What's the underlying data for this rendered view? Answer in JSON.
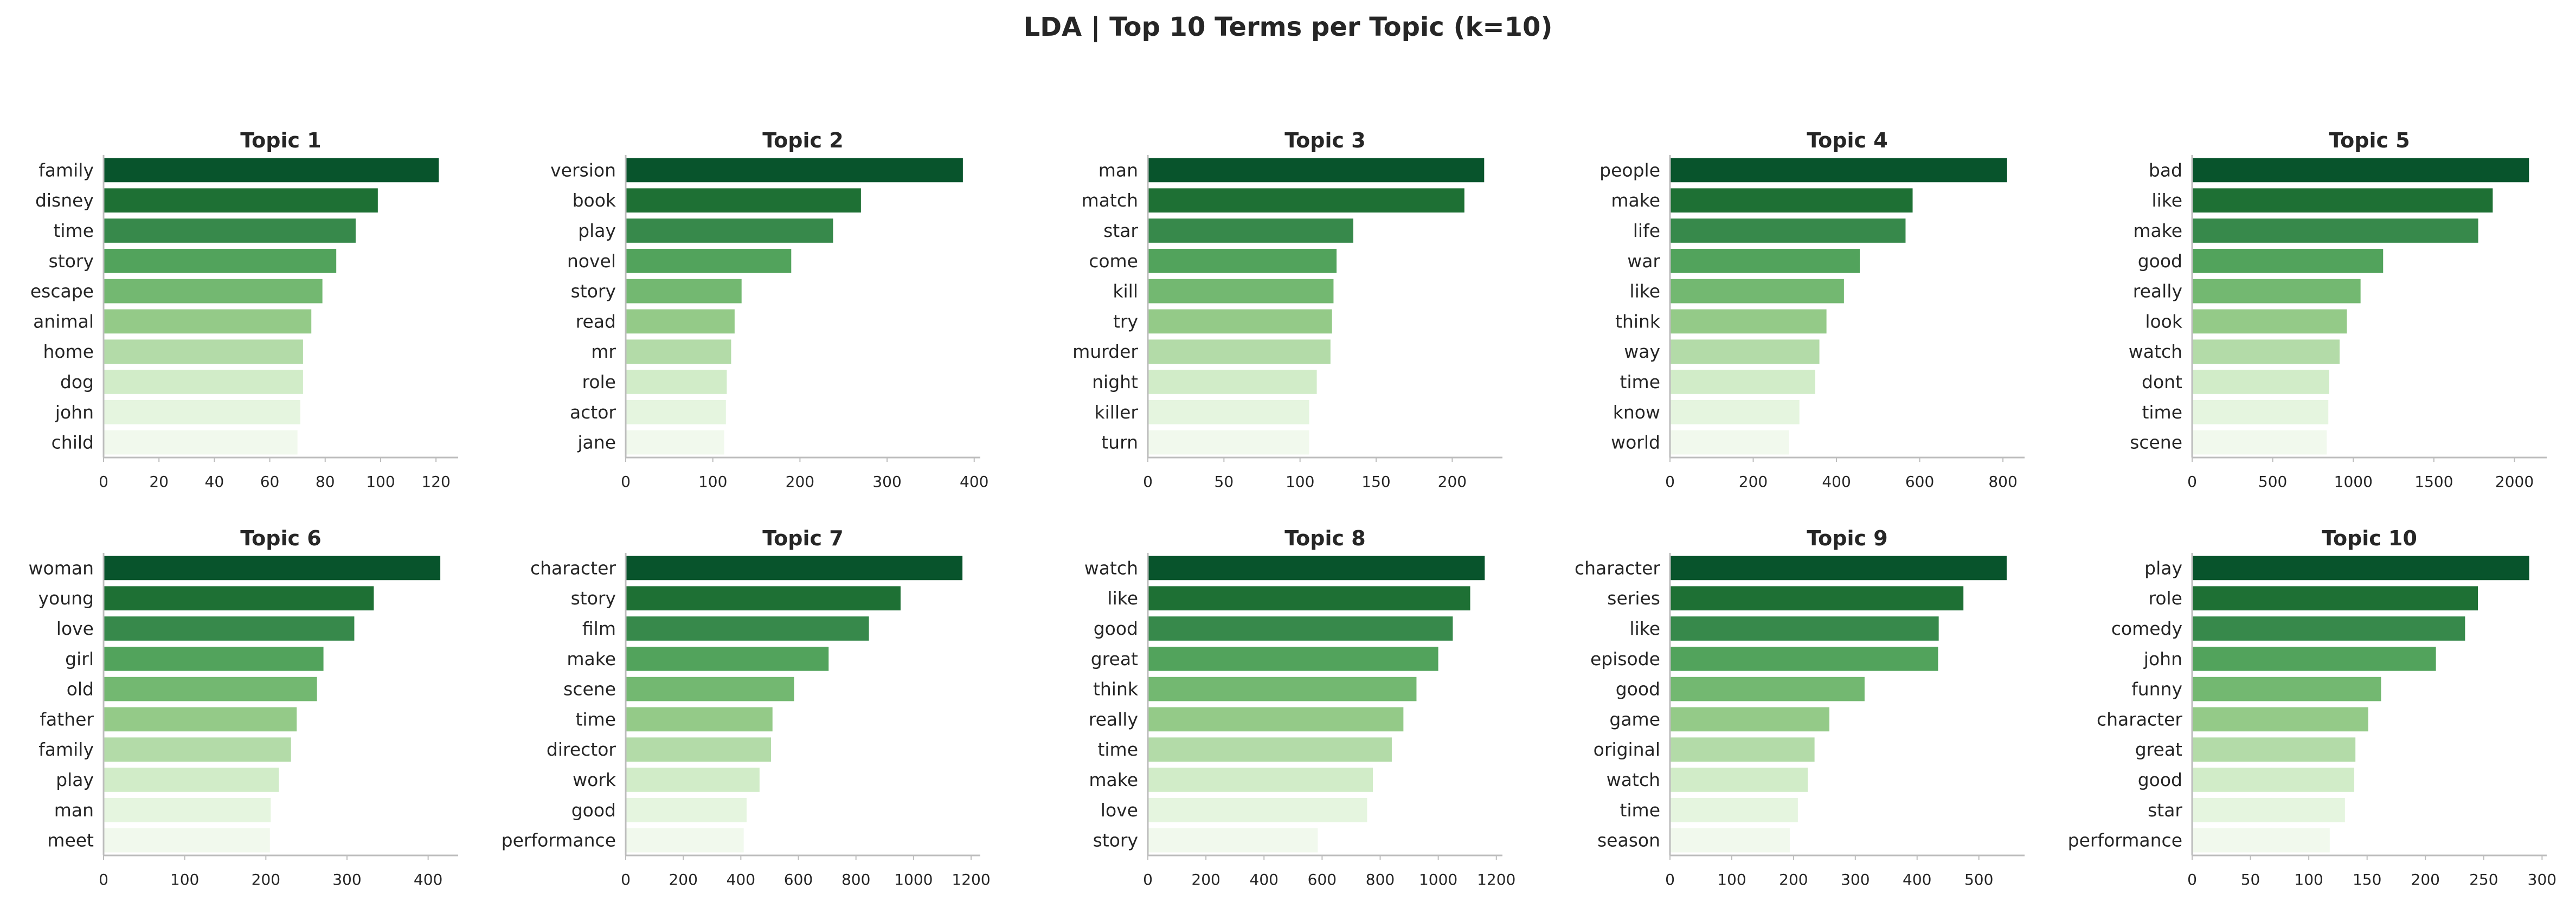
{
  "suptitle": "LDA | Top 10 Terms per Topic (k=10)",
  "colors": [
    "#08542c",
    "#1e7034",
    "#37894b",
    "#52a35c",
    "#73b871",
    "#94ca88",
    "#b3dba8",
    "#d1ecc8",
    "#e5f5df",
    "#f1f9ed"
  ],
  "chart_data": [
    {
      "type": "bar",
      "orientation": "horizontal",
      "title": "Topic 1",
      "categories": [
        "family",
        "disney",
        "time",
        "story",
        "escape",
        "animal",
        "home",
        "dog",
        "john",
        "child"
      ],
      "values": [
        121,
        99,
        91,
        84,
        79,
        75,
        72,
        72,
        71,
        70
      ],
      "xlim": [
        0,
        128
      ],
      "xticks": [
        0,
        20,
        40,
        60,
        80,
        100,
        120
      ]
    },
    {
      "type": "bar",
      "orientation": "horizontal",
      "title": "Topic 2",
      "categories": [
        "version",
        "book",
        "play",
        "novel",
        "story",
        "read",
        "mr",
        "role",
        "actor",
        "jane"
      ],
      "values": [
        387,
        270,
        238,
        190,
        133,
        125,
        121,
        116,
        115,
        113
      ],
      "xlim": [
        0,
        407
      ],
      "xticks": [
        0,
        100,
        200,
        300,
        400
      ]
    },
    {
      "type": "bar",
      "orientation": "horizontal",
      "title": "Topic 3",
      "categories": [
        "man",
        "match",
        "star",
        "come",
        "kill",
        "try",
        "murder",
        "night",
        "killer",
        "turn"
      ],
      "values": [
        221,
        208,
        135,
        124,
        122,
        121,
        120,
        111,
        106,
        106
      ],
      "xlim": [
        0,
        233
      ],
      "xticks": [
        0,
        50,
        100,
        150,
        200
      ]
    },
    {
      "type": "bar",
      "orientation": "horizontal",
      "title": "Topic 4",
      "categories": [
        "people",
        "make",
        "life",
        "war",
        "like",
        "think",
        "way",
        "time",
        "know",
        "world"
      ],
      "values": [
        810,
        583,
        566,
        456,
        418,
        376,
        359,
        349,
        311,
        286
      ],
      "xlim": [
        0,
        852
      ],
      "xticks": [
        0,
        200,
        400,
        600,
        800
      ]
    },
    {
      "type": "bar",
      "orientation": "horizontal",
      "title": "Topic 5",
      "categories": [
        "bad",
        "like",
        "make",
        "good",
        "really",
        "look",
        "watch",
        "dont",
        "time",
        "scene"
      ],
      "values": [
        2090,
        1865,
        1775,
        1185,
        1045,
        960,
        915,
        850,
        845,
        835
      ],
      "xlim": [
        0,
        2200
      ],
      "xticks": [
        0,
        500,
        1000,
        1500,
        2000
      ]
    },
    {
      "type": "bar",
      "orientation": "horizontal",
      "title": "Topic 6",
      "categories": [
        "woman",
        "young",
        "love",
        "girl",
        "old",
        "father",
        "family",
        "play",
        "man",
        "meet"
      ],
      "values": [
        415,
        333,
        309,
        271,
        263,
        238,
        231,
        216,
        206,
        205
      ],
      "xlim": [
        0,
        437
      ],
      "xticks": [
        0,
        100,
        200,
        300,
        400
      ]
    },
    {
      "type": "bar",
      "orientation": "horizontal",
      "title": "Topic 7",
      "categories": [
        "character",
        "story",
        "film",
        "make",
        "scene",
        "time",
        "director",
        "work",
        "good",
        "performance"
      ],
      "values": [
        1170,
        955,
        845,
        705,
        585,
        510,
        505,
        465,
        420,
        410
      ],
      "xlim": [
        0,
        1232
      ],
      "xticks": [
        0,
        200,
        400,
        600,
        800,
        1000,
        1200
      ]
    },
    {
      "type": "bar",
      "orientation": "horizontal",
      "title": "Topic 8",
      "categories": [
        "watch",
        "like",
        "good",
        "great",
        "think",
        "really",
        "time",
        "make",
        "love",
        "story"
      ],
      "values": [
        1160,
        1110,
        1050,
        1000,
        925,
        880,
        840,
        775,
        755,
        585
      ],
      "xlim": [
        0,
        1221
      ],
      "xticks": [
        0,
        200,
        400,
        600,
        800,
        1000,
        1200
      ]
    },
    {
      "type": "bar",
      "orientation": "horizontal",
      "title": "Topic 9",
      "categories": [
        "character",
        "series",
        "like",
        "episode",
        "good",
        "game",
        "original",
        "watch",
        "time",
        "season"
      ],
      "values": [
        545,
        475,
        435,
        434,
        315,
        258,
        234,
        223,
        207,
        194
      ],
      "xlim": [
        0,
        574
      ],
      "xticks": [
        0,
        100,
        200,
        300,
        400,
        500
      ]
    },
    {
      "type": "bar",
      "orientation": "horizontal",
      "title": "Topic 10",
      "categories": [
        "play",
        "role",
        "comedy",
        "john",
        "funny",
        "character",
        "great",
        "good",
        "star",
        "performance"
      ],
      "values": [
        289,
        245,
        234,
        209,
        162,
        151,
        140,
        139,
        131,
        118
      ],
      "xlim": [
        0,
        304
      ],
      "xticks": [
        0,
        50,
        100,
        150,
        200,
        250,
        300
      ]
    }
  ]
}
